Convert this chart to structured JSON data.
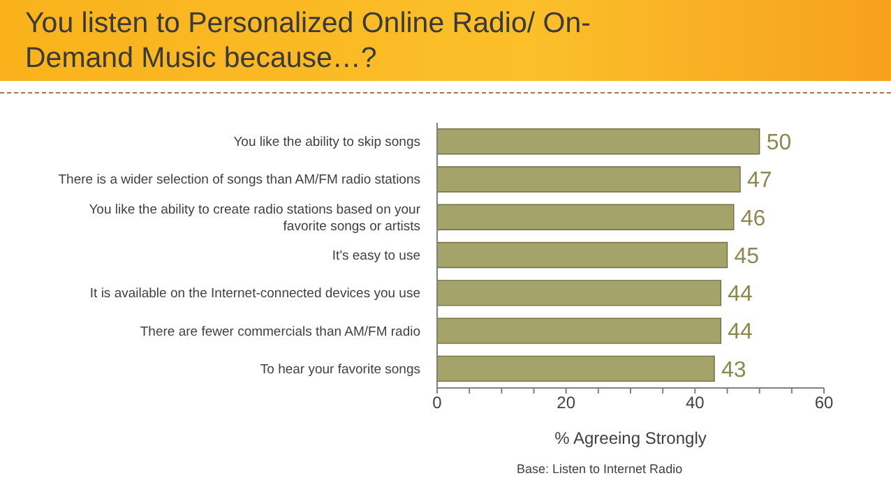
{
  "chart_data": {
    "type": "bar",
    "orientation": "horizontal",
    "title": "You listen to Personalized Online Radio/ On-Demand Music because…?",
    "xlabel": "% Agreeing Strongly",
    "categories": [
      "You like the ability to skip songs",
      "There is a wider selection of songs than AM/FM radio stations",
      "You like the ability to create radio stations based on your favorite songs or artists",
      "It's easy to use",
      "It is available on the Internet-connected devices you use",
      "There are fewer commercials than AM/FM radio",
      "To hear your favorite songs"
    ],
    "values": [
      50,
      47,
      46,
      45,
      44,
      44,
      43
    ],
    "color": "#a4a46a",
    "data_labels": true,
    "xlim": [
      0,
      60
    ],
    "xticks": [
      0,
      {
        "value": 5,
        "label": null
      },
      {
        "value": 10,
        "label": null
      },
      {
        "value": 15,
        "label": null
      },
      20,
      {
        "value": 25,
        "label": null
      },
      {
        "value": 30,
        "label": null
      },
      {
        "value": 35,
        "label": null
      },
      40,
      {
        "value": 45,
        "label": null
      },
      {
        "value": 50,
        "label": null
      },
      {
        "value": 55,
        "label": null
      },
      60
    ],
    "grid": false,
    "annotations": [
      "Base: Listen to Internet Radio"
    ]
  }
}
